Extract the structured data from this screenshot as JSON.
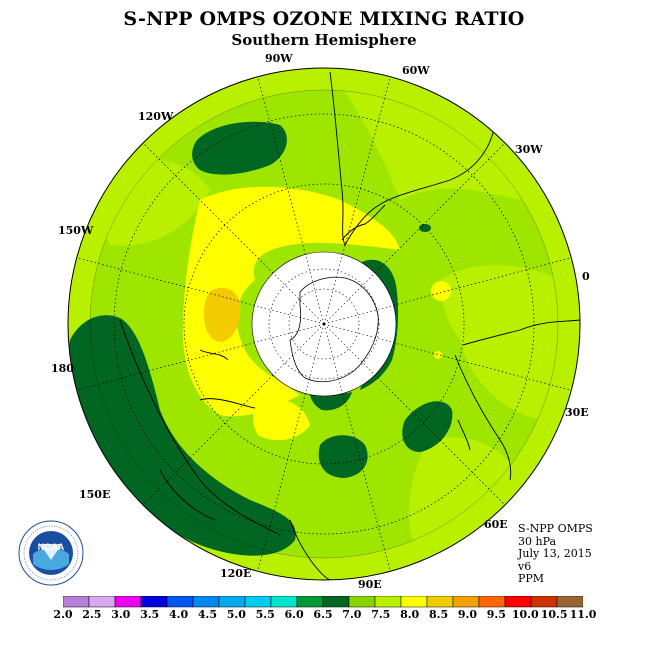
{
  "header": {
    "title": "S-NPP OMPS OZONE MIXING RATIO",
    "subtitle": "Southern Hemisphere"
  },
  "map": {
    "projection": "polar-stereographic-south",
    "longitude_labels": [
      "90W",
      "60W",
      "30W",
      "0",
      "30E",
      "60E",
      "90E",
      "120E",
      "150E",
      "180",
      "150W",
      "120W"
    ],
    "colors": {
      "ocean_fill": "#9ee600",
      "rim": "#b8f000"
    }
  },
  "info": {
    "instrument": "S-NPP OMPS",
    "level": "30 hPa",
    "date": "July 13, 2015",
    "version": "v6",
    "units": "PPM"
  },
  "colorbar": {
    "ticks": [
      "2.0",
      "2.5",
      "3.0",
      "3.5",
      "4.0",
      "4.5",
      "5.0",
      "5.5",
      "6.0",
      "6.5",
      "7.0",
      "7.5",
      "8.0",
      "8.5",
      "9.0",
      "9.5",
      "10.0",
      "10.5",
      "11.0"
    ],
    "colors": [
      "#b77ddb",
      "#d9a6f0",
      "#ee00ee",
      "#0000dd",
      "#0055ee",
      "#0088ee",
      "#00aaee",
      "#00ccee",
      "#00e5cc",
      "#009933",
      "#006622",
      "#88d400",
      "#b8f000",
      "#ffff00",
      "#f2cc00",
      "#f2a200",
      "#ff6600",
      "#ff0000",
      "#cc3300",
      "#996633"
    ]
  },
  "logo": {
    "text": "NOAA",
    "ring_text": "NATIONAL OCEANIC AND ATMOSPHERIC ADMINISTRATION · U.S. DEPARTMENT OF COMMERCE"
  }
}
